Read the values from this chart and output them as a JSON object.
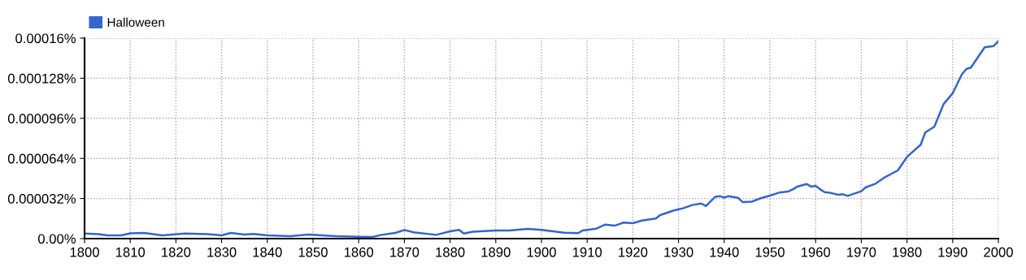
{
  "chart_data": {
    "type": "line",
    "x": [
      1800,
      1803,
      1805,
      1808,
      1810,
      1813,
      1817,
      1822,
      1827,
      1830,
      1832,
      1835,
      1837,
      1840,
      1845,
      1849,
      1852,
      1855,
      1860,
      1863,
      1865,
      1868,
      1870,
      1872,
      1877,
      1880,
      1882,
      1883,
      1885,
      1890,
      1893,
      1897,
      1900,
      1905,
      1908,
      1909,
      1912,
      1914,
      1916,
      1918,
      1920,
      1922,
      1925,
      1926,
      1929,
      1931,
      1933,
      1935,
      1936,
      1938,
      1939,
      1940,
      1941,
      1943,
      1944,
      1946,
      1948,
      1950,
      1952,
      1954,
      1955,
      1956,
      1958,
      1959,
      1960,
      1961,
      1962,
      1963,
      1965,
      1966,
      1967,
      1970,
      1971,
      1973,
      1975,
      1978,
      1979,
      1980,
      1983,
      1984,
      1986,
      1988,
      1990,
      1992,
      1993,
      1994,
      1997,
      1999,
      2000
    ],
    "series": [
      {
        "name": "Halloween",
        "color": "#3366cc",
        "values": [
          4.1e-06,
          3.5e-06,
          2.6e-06,
          2.6e-06,
          4.2e-06,
          4.5e-06,
          2.6e-06,
          4e-06,
          3.5e-06,
          2.6e-06,
          4.5e-06,
          3.3e-06,
          3.8e-06,
          2.6e-06,
          2e-06,
          3.3e-06,
          2.6e-06,
          2e-06,
          1.5e-06,
          1.3e-06,
          3e-06,
          4.5e-06,
          6.9e-06,
          5e-06,
          3e-06,
          5.8e-06,
          6.9e-06,
          4.1e-06,
          5.5e-06,
          6.5e-06,
          6.5e-06,
          7.8e-06,
          6.9e-06,
          4.7e-06,
          4.3e-06,
          6.5e-06,
          8e-06,
          1.12e-05,
          1.03e-05,
          1.28e-05,
          1.23e-05,
          1.44e-05,
          1.6e-05,
          1.88e-05,
          2.25e-05,
          2.42e-05,
          2.68e-05,
          2.8e-05,
          2.6e-05,
          3.33e-05,
          3.39e-05,
          3.28e-05,
          3.39e-05,
          3.26e-05,
          2.92e-05,
          2.95e-05,
          3.22e-05,
          3.43e-05,
          3.67e-05,
          3.76e-05,
          3.93e-05,
          4.15e-05,
          4.36e-05,
          4.15e-05,
          4.21e-05,
          3.93e-05,
          3.71e-05,
          3.67e-05,
          3.5e-05,
          3.54e-05,
          3.41e-05,
          3.78e-05,
          4.1e-05,
          4.36e-05,
          4.86e-05,
          5.44e-05,
          5.98e-05,
          6.52e-05,
          7.5e-05,
          8.47e-05,
          8.94e-05,
          0.0001073,
          0.000116,
          0.000131,
          0.0001354,
          0.0001365,
          0.0001527,
          0.0001537,
          0.0001576
        ]
      }
    ],
    "xlim": [
      1800,
      2000
    ],
    "xticks": [
      1800,
      1810,
      1820,
      1830,
      1840,
      1850,
      1860,
      1870,
      1880,
      1890,
      1900,
      1910,
      1920,
      1930,
      1940,
      1950,
      1960,
      1970,
      1980,
      1990,
      2000
    ],
    "ylim": [
      0,
      0.00016
    ],
    "yticks": [
      {
        "value": 0,
        "label": "0.00%"
      },
      {
        "value": 3.2e-05,
        "label": "0.000032%"
      },
      {
        "value": 6.4e-05,
        "label": "0.000064%"
      },
      {
        "value": 9.6e-05,
        "label": "0.000096%"
      },
      {
        "value": 0.000128,
        "label": "0.000128%"
      },
      {
        "value": 0.00016,
        "label": "0.00016%"
      }
    ],
    "grid": true,
    "legend": "top left",
    "marker": "none",
    "line_style": "solid"
  }
}
